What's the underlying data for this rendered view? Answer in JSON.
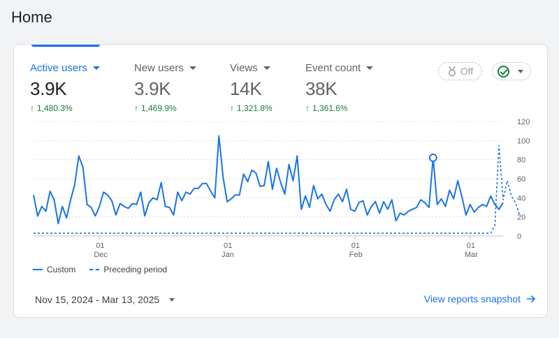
{
  "page": {
    "title": "Home"
  },
  "metrics": [
    {
      "label": "Active users",
      "value": "3.9K",
      "change": "1,480.3%",
      "active": true
    },
    {
      "label": "New users",
      "value": "3.9K",
      "change": "1,469.9%",
      "active": false
    },
    {
      "label": "Views",
      "value": "14K",
      "change": "1,321.8%",
      "active": false
    },
    {
      "label": "Event count",
      "value": "38K",
      "change": "1,361.6%",
      "active": false
    }
  ],
  "toggle": {
    "label": "Off",
    "icon": "medal-icon"
  },
  "status_chip": {
    "icon": "check-circle-icon"
  },
  "legend": {
    "current": "Custom",
    "previous": "Preceding period"
  },
  "date_range": "Nov 15, 2024 - Mar 13, 2025",
  "snapshot_link": "View reports snapshot",
  "colors": {
    "accent": "#1a73e8",
    "positive": "#188038"
  },
  "chart_data": {
    "type": "line",
    "ylim": [
      0,
      120
    ],
    "yticks": [
      "0",
      "20",
      "40",
      "60",
      "80",
      "100",
      "120"
    ],
    "xticks": [
      {
        "top": "01",
        "bottom": "Dec",
        "index": 16
      },
      {
        "top": "01",
        "bottom": "Jan",
        "index": 47
      },
      {
        "top": "01",
        "bottom": "Feb",
        "index": 78
      },
      {
        "top": "01",
        "bottom": "Mar",
        "index": 106
      }
    ],
    "series": [
      {
        "name": "Custom",
        "style": "solid",
        "values": [
          43,
          21,
          31,
          26,
          47,
          38,
          13,
          31,
          19,
          38,
          54,
          84,
          72,
          33,
          30,
          21,
          31,
          46,
          43,
          37,
          22,
          34,
          31,
          29,
          34,
          33,
          46,
          21,
          35,
          40,
          38,
          56,
          31,
          30,
          22,
          46,
          37,
          46,
          44,
          50,
          50,
          55,
          55,
          47,
          40,
          105,
          62,
          36,
          39,
          43,
          43,
          65,
          57,
          69,
          66,
          52,
          53,
          78,
          49,
          71,
          56,
          44,
          75,
          58,
          84,
          28,
          42,
          30,
          53,
          39,
          44,
          33,
          26,
          38,
          44,
          36,
          49,
          28,
          26,
          35,
          37,
          22,
          31,
          36,
          24,
          36,
          28,
          38,
          16,
          24,
          22,
          26,
          28,
          30,
          38,
          35,
          30,
          82,
          33,
          39,
          31,
          48,
          39,
          58,
          41,
          22,
          33,
          25,
          30,
          33,
          31,
          42,
          33,
          28,
          35
        ],
        "highlight_index": 97
      },
      {
        "name": "Preceding period",
        "style": "dashed",
        "values": [
          3,
          3,
          3,
          3,
          3,
          3,
          3,
          3,
          3,
          3,
          3,
          3,
          3,
          3,
          3,
          3,
          3,
          3,
          3,
          3,
          3,
          3,
          3,
          3,
          3,
          3,
          3,
          3,
          3,
          3,
          3,
          3,
          3,
          3,
          3,
          3,
          3,
          3,
          3,
          3,
          3,
          3,
          3,
          3,
          3,
          3,
          3,
          3,
          3,
          3,
          3,
          3,
          3,
          3,
          3,
          3,
          3,
          3,
          3,
          3,
          3,
          3,
          3,
          3,
          3,
          3,
          3,
          3,
          3,
          3,
          3,
          3,
          3,
          3,
          3,
          3,
          3,
          3,
          3,
          3,
          3,
          3,
          3,
          3,
          3,
          3,
          3,
          3,
          3,
          3,
          3,
          3,
          3,
          3,
          3,
          3,
          3,
          3,
          3,
          3,
          3,
          3,
          3,
          3,
          3,
          3,
          3,
          3,
          3,
          3,
          3,
          3,
          11,
          95,
          38,
          58,
          42,
          35,
          22
        ]
      }
    ]
  }
}
